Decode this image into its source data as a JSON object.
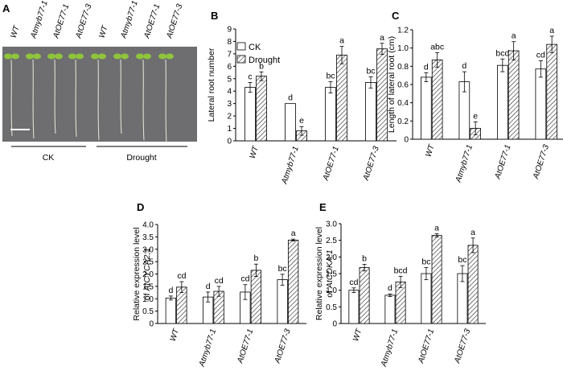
{
  "panel_labels": [
    "A",
    "B",
    "C",
    "D",
    "E"
  ],
  "photo": {
    "genotype_labels": [
      "WT",
      "Atmyb77-1",
      "AtOE77-1",
      "AtOE77-3",
      "WT",
      "Atmyb77-1",
      "AtOE77-1",
      "AtOE77-3"
    ],
    "group_labels": [
      "CK",
      "Drought"
    ],
    "background_color": "#6e6e70",
    "seedling_color": "#8fc43c"
  },
  "legend": {
    "items": [
      "CK",
      "Drought"
    ]
  },
  "chart_data": [
    {
      "panel": "B",
      "type": "bar",
      "categories": [
        "WT",
        "Atmyb77-1",
        "AtOE77-1",
        "AtOE77-3"
      ],
      "ylabel": [
        "Lateral root number"
      ],
      "ylim": [
        0,
        9
      ],
      "yticks": [
        "0",
        "1",
        "2",
        "3",
        "4",
        "5",
        "6",
        "7",
        "8",
        "9"
      ],
      "series": [
        {
          "name": "CK",
          "values": [
            4.3,
            3.0,
            4.3,
            4.7
          ],
          "errors": [
            0.4,
            0.0,
            0.45,
            0.45
          ],
          "letters": [
            "c",
            "d",
            "bc",
            "bc"
          ]
        },
        {
          "name": "Drought",
          "values": [
            5.2,
            0.8,
            6.9,
            7.4
          ],
          "errors": [
            0.35,
            0.35,
            0.7,
            0.45
          ],
          "letters": [
            "b",
            "e",
            "a",
            "a"
          ]
        }
      ]
    },
    {
      "panel": "C",
      "type": "bar",
      "categories": [
        "WT",
        "Atmyb77-1",
        "AtOE77-1",
        "AtOE77-3"
      ],
      "ylabel": [
        "Length of lateral root (cm)"
      ],
      "ylim": [
        0,
        1.2
      ],
      "yticks": [
        "0",
        "0.2",
        "0.4",
        "0.6",
        "0.8",
        "1.0",
        "1.2"
      ],
      "series": [
        {
          "name": "CK",
          "values": [
            0.68,
            0.63,
            0.81,
            0.77
          ],
          "errors": [
            0.05,
            0.11,
            0.07,
            0.09
          ],
          "letters": [
            "d",
            "d",
            "bcd",
            "cd"
          ]
        },
        {
          "name": "Drought",
          "values": [
            0.87,
            0.12,
            0.97,
            1.04
          ],
          "errors": [
            0.08,
            0.07,
            0.1,
            0.09
          ],
          "letters": [
            "abc",
            "e",
            "a",
            "a"
          ]
        }
      ]
    },
    {
      "panel": "D",
      "type": "bar",
      "categories": [
        "WT",
        "Atmyb77-1",
        "AtOE77-1",
        "AtOE77-3"
      ],
      "ylabel": [
        "Relative expression level",
        "of AtCYCA2;1"
      ],
      "ylim": [
        0,
        4.0
      ],
      "yticks": [
        "0",
        "0.5",
        "1.0",
        "1.5",
        "2.0",
        "2.5",
        "3.0",
        "3.5",
        "4.0"
      ],
      "series": [
        {
          "name": "CK",
          "values": [
            1.03,
            1.07,
            1.27,
            1.77
          ],
          "errors": [
            0.08,
            0.2,
            0.3,
            0.22
          ],
          "letters": [
            "d",
            "d",
            "cd",
            "bc"
          ]
        },
        {
          "name": "Drought",
          "values": [
            1.47,
            1.3,
            2.15,
            3.37
          ],
          "errors": [
            0.22,
            0.2,
            0.25,
            0.04
          ],
          "letters": [
            "cd",
            "cd",
            "b",
            "a"
          ]
        }
      ]
    },
    {
      "panel": "E",
      "type": "bar",
      "categories": [
        "WT",
        "Atmyb77-1",
        "AtOE77-1",
        "AtOE77-3"
      ],
      "ylabel": [
        "Relative expression level",
        "of AtCDKA;1"
      ],
      "ylim": [
        0,
        3.0
      ],
      "yticks": [
        "0",
        "0.5",
        "1.0",
        "1.5",
        "2.0",
        "2.5",
        "3.0"
      ],
      "series": [
        {
          "name": "CK",
          "values": [
            1.0,
            0.85,
            1.5,
            1.5
          ],
          "errors": [
            0.07,
            0.04,
            0.18,
            0.24
          ],
          "letters": [
            "cd",
            "d",
            "bc",
            "bc"
          ]
        },
        {
          "name": "Drought",
          "values": [
            1.68,
            1.25,
            2.65,
            2.35
          ],
          "errors": [
            0.1,
            0.17,
            0.05,
            0.22
          ],
          "letters": [
            "b",
            "bcd",
            "a",
            "a"
          ]
        }
      ]
    }
  ]
}
